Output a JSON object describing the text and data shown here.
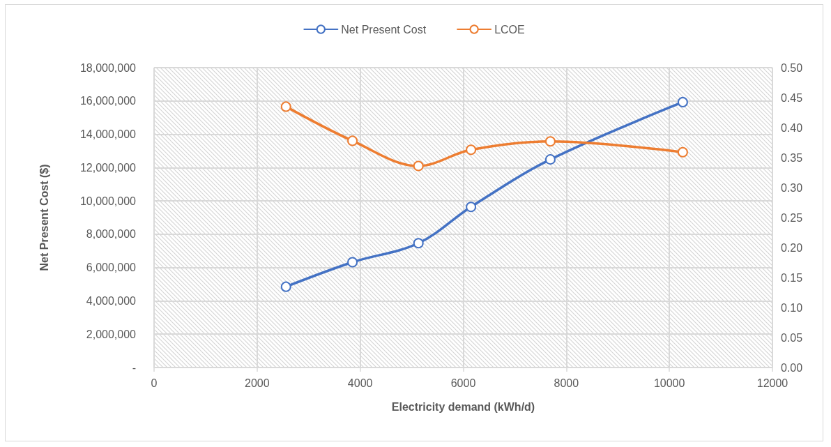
{
  "chart_data": {
    "type": "line",
    "xlabel": "Electricity demand (kWh/d)",
    "ylabel": "Net Present Cost ($)",
    "x": [
      2560,
      3850,
      5130,
      6150,
      7690,
      10260
    ],
    "series": [
      {
        "name": "Net Present Cost",
        "color": "#4472c4",
        "values": [
          4850000,
          6320000,
          7460000,
          9640000,
          12490000,
          15930000
        ]
      },
      {
        "name": "LCOE",
        "color": "#ed7d31",
        "axis": "y2",
        "values": [
          0.435,
          0.378,
          0.336,
          0.363,
          0.377,
          0.359
        ]
      }
    ],
    "xlim": [
      0,
      12000
    ],
    "xticks": [
      0,
      2000,
      4000,
      6000,
      8000,
      10000,
      12000
    ],
    "ylim": [
      0,
      18000000
    ],
    "yticks": [
      {
        "value": 0,
        "label": "-"
      },
      {
        "value": 2000000,
        "label": "2,000,000"
      },
      {
        "value": 4000000,
        "label": "4,000,000"
      },
      {
        "value": 6000000,
        "label": "6,000,000"
      },
      {
        "value": 8000000,
        "label": "8,000,000"
      },
      {
        "value": 10000000,
        "label": "10,000,000"
      },
      {
        "value": 12000000,
        "label": "12,000,000"
      },
      {
        "value": 14000000,
        "label": "14,000,000"
      },
      {
        "value": 16000000,
        "label": "16,000,000"
      },
      {
        "value": 18000000,
        "label": "18,000,000"
      }
    ],
    "y2lim": [
      0,
      0.5
    ],
    "y2ticks": [
      {
        "value": 0,
        "label": "0.00"
      },
      {
        "value": 0.05,
        "label": "0.05"
      },
      {
        "value": 0.1,
        "label": "0.10"
      },
      {
        "value": 0.15,
        "label": "0.15"
      },
      {
        "value": 0.2,
        "label": "0.20"
      },
      {
        "value": 0.25,
        "label": "0.25"
      },
      {
        "value": 0.3,
        "label": "0.30"
      },
      {
        "value": 0.35,
        "label": "0.35"
      },
      {
        "value": 0.4,
        "label": "0.40"
      },
      {
        "value": 0.45,
        "label": "0.45"
      },
      {
        "value": 0.5,
        "label": "0.50"
      }
    ],
    "grid": true,
    "legend": "top",
    "marker": "circle",
    "line_style": "solid"
  }
}
